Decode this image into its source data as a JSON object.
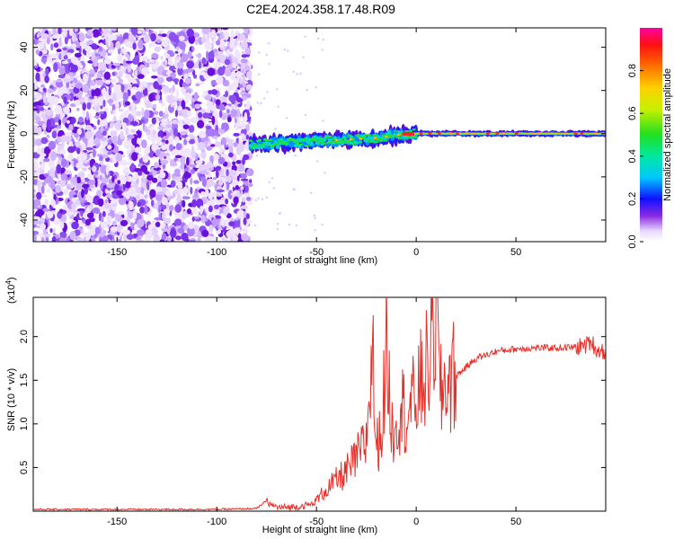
{
  "figure": {
    "title": "C2E4.2024.358.17.48.R09"
  },
  "chart_data": [
    {
      "type": "heatmap",
      "xlabel": "Height of straight line (km)",
      "ylabel": "Frequency (Hz)",
      "xlim": [
        -192,
        95
      ],
      "ylim": [
        -50,
        49
      ],
      "xticks": [
        -150,
        -100,
        -50,
        0,
        50
      ],
      "yticks": [
        -40,
        -20,
        0,
        20,
        40
      ],
      "grid": false,
      "colorbar": {
        "label": "Normalized spectral amplitude",
        "range": [
          0,
          1
        ],
        "ticks": [
          0.0,
          0.2,
          0.4,
          0.6,
          0.8
        ],
        "tick_labels": [
          "0.0",
          "0.2",
          "0.4",
          "0.6",
          "0.8"
        ]
      },
      "features": {
        "noise_region_x": [
          -192,
          -83
        ],
        "signal_start_x": -83,
        "ridge_points": [
          [
            -83,
            -5
          ],
          [
            -60,
            -4
          ],
          [
            -40,
            -3
          ],
          [
            -20,
            -2
          ],
          [
            -5,
            0
          ],
          [
            0,
            0
          ],
          [
            20,
            0
          ],
          [
            95,
            0
          ]
        ]
      }
    },
    {
      "type": "line",
      "xlabel": "Height of straight line (km)",
      "ylabel": "SNR (10 * v/v)",
      "y_multiplier_label": "(x10",
      "y_multiplier_exp": "4",
      "y_multiplier_close": ")",
      "xlim": [
        -192,
        95
      ],
      "ylim": [
        0,
        2.45
      ],
      "xticks": [
        -150,
        -100,
        -50,
        0,
        50
      ],
      "yticks": [
        0.5,
        1.0,
        1.5,
        2.0
      ],
      "ytick_labels": [
        "0.5",
        "1.0",
        "1.5",
        "2.0"
      ],
      "color": "#e8302a",
      "series": [
        {
          "x": [
            -192,
            -100,
            -80,
            -75,
            -72,
            -68,
            -60,
            -52,
            -45,
            -40,
            -35,
            -30,
            -25,
            -22,
            -20,
            -17,
            -15,
            -12,
            -10,
            -7,
            -5,
            0,
            3,
            5,
            8,
            10,
            12,
            15,
            20,
            25,
            30,
            40,
            50,
            60,
            70,
            80,
            85,
            88,
            90,
            95
          ],
          "y": [
            0.02,
            0.02,
            0.03,
            0.12,
            0.06,
            0.04,
            0.05,
            0.08,
            0.25,
            0.35,
            0.45,
            0.6,
            0.8,
            1.9,
            0.7,
            1.0,
            1.9,
            0.9,
            1.1,
            1.2,
            1.1,
            1.3,
            1.5,
            1.6,
            1.9,
            2.4,
            1.3,
            1.5,
            1.55,
            1.65,
            1.75,
            1.83,
            1.86,
            1.87,
            1.87,
            1.88,
            1.9,
            1.95,
            1.85,
            1.83
          ]
        }
      ]
    }
  ]
}
